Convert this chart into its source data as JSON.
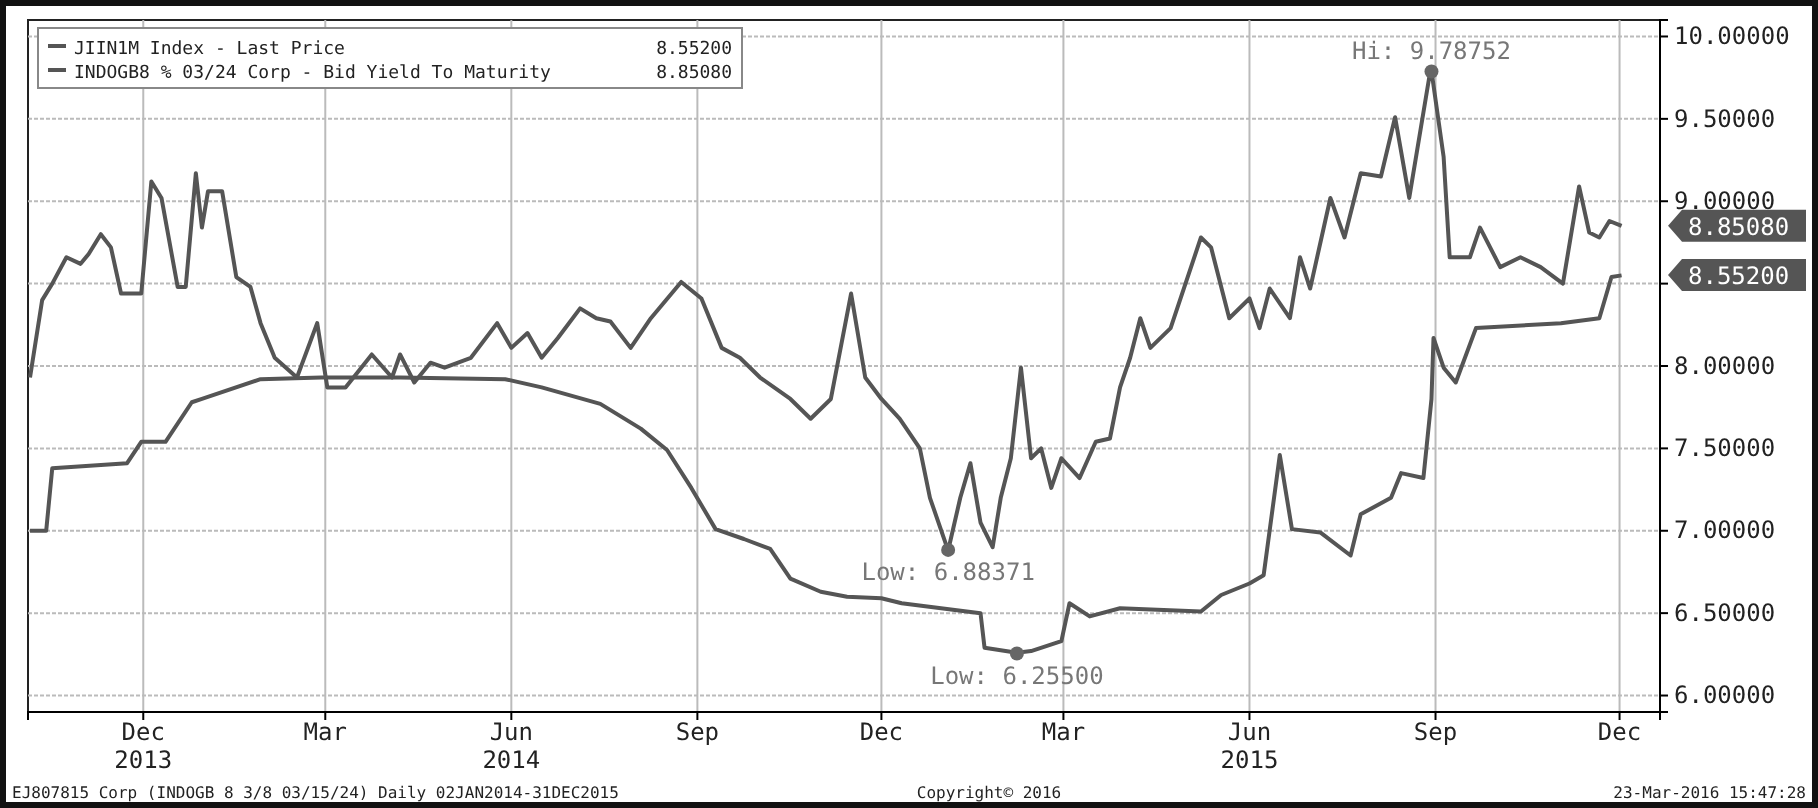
{
  "chart_data": {
    "type": "line",
    "xlim": [
      "2013-10-05",
      "2015-12-21"
    ],
    "ylim": [
      5.9,
      10.1
    ],
    "xticks": [
      {
        "value": "2013-12-01",
        "label": "Dec\n2013"
      },
      {
        "value": "2014-03-01",
        "label": "Mar"
      },
      {
        "value": "2014-06-01",
        "label": "Jun\n2014"
      },
      {
        "value": "2014-09-01",
        "label": "Sep"
      },
      {
        "value": "2014-12-01",
        "label": "Dec"
      },
      {
        "value": "2015-03-01",
        "label": "Mar"
      },
      {
        "value": "2015-06-01",
        "label": "Jun\n2015"
      },
      {
        "value": "2015-09-01",
        "label": "Sep"
      },
      {
        "value": "2015-12-01",
        "label": "Dec"
      }
    ],
    "yticks": [
      {
        "value": 6,
        "label": "6.00000"
      },
      {
        "value": 6.5,
        "label": "6.50000"
      },
      {
        "value": 7,
        "label": "7.00000"
      },
      {
        "value": 7.5,
        "label": "7.50000"
      },
      {
        "value": 8,
        "label": "8.00000"
      },
      {
        "value": 8.5,
        "label": null
      },
      {
        "value": 9,
        "label": "9.00000"
      },
      {
        "value": 9.5,
        "label": "9.50000"
      },
      {
        "value": 10,
        "label": "10.00000"
      }
    ],
    "grid": true,
    "legend": "top left",
    "line_style": "solid",
    "series": [
      {
        "name": "JIIN1M Index - Last Price",
        "color": "#555555",
        "x": [
          "2013-10-06",
          "2013-10-14",
          "2013-10-17",
          "2013-11-23",
          "2013-11-30",
          "2013-12-12",
          "2013-12-25",
          "2013-12-30",
          "2014-01-28",
          "2014-02-27",
          "2014-04-07",
          "2014-05-29",
          "2014-06-16",
          "2014-07-15",
          "2014-08-04",
          "2014-08-17",
          "2014-08-29",
          "2014-09-10",
          "2014-09-24",
          "2014-10-07",
          "2014-10-17",
          "2014-11-01",
          "2014-11-14",
          "2014-12-01",
          "2014-12-11",
          "2015-01-19",
          "2015-01-21",
          "2015-02-06",
          "2015-02-13",
          "2015-02-28",
          "2015-03-04",
          "2015-03-14",
          "2015-03-29",
          "2015-05-08",
          "2015-05-18",
          "2015-06-01",
          "2015-06-08",
          "2015-06-16",
          "2015-06-22",
          "2015-07-06",
          "2015-07-21",
          "2015-07-26",
          "2015-08-10",
          "2015-08-15",
          "2015-08-26",
          "2015-08-30",
          "2015-08-31",
          "2015-09-05",
          "2015-09-11",
          "2015-09-21",
          "2015-11-02",
          "2015-11-21",
          "2015-11-27",
          "2015-12-02"
        ],
        "values": [
          7.0,
          7.0,
          7.38,
          7.41,
          7.54,
          7.54,
          7.78,
          7.8,
          7.92,
          7.93,
          7.93,
          7.92,
          7.87,
          7.77,
          7.62,
          7.49,
          7.26,
          7.01,
          6.95,
          6.89,
          6.71,
          6.63,
          6.6,
          6.59,
          6.56,
          6.5,
          6.29,
          6.26,
          6.27,
          6.33,
          6.56,
          6.48,
          6.53,
          6.51,
          6.61,
          6.68,
          6.73,
          7.46,
          7.01,
          6.99,
          6.85,
          7.1,
          7.2,
          7.35,
          7.32,
          7.8,
          8.17,
          7.99,
          7.9,
          8.23,
          8.26,
          8.29,
          8.54,
          8.55
        ]
      },
      {
        "name": "INDOGB8 % 03/24 Corp - Bid Yield To Maturity",
        "color": "#555555",
        "x": [
          "2013-10-06",
          "2013-10-12",
          "2013-10-17",
          "2013-10-24",
          "2013-10-31",
          "2013-11-04",
          "2013-11-10",
          "2013-11-15",
          "2013-11-20",
          "2013-11-30",
          "2013-12-05",
          "2013-12-10",
          "2013-12-18",
          "2013-12-22",
          "2013-12-27",
          "2013-12-30",
          "2014-01-02",
          "2014-01-09",
          "2014-01-16",
          "2014-01-23",
          "2014-01-28",
          "2014-02-04",
          "2014-02-15",
          "2014-02-25",
          "2014-03-02",
          "2014-03-11",
          "2014-03-24",
          "2014-04-03",
          "2014-04-07",
          "2014-04-14",
          "2014-04-22",
          "2014-04-29",
          "2014-05-12",
          "2014-05-25",
          "2014-06-01",
          "2014-06-09",
          "2014-06-16",
          "2014-06-24",
          "2014-07-05",
          "2014-07-13",
          "2014-07-20",
          "2014-07-30",
          "2014-08-09",
          "2014-08-24",
          "2014-09-03",
          "2014-09-13",
          "2014-09-22",
          "2014-10-02",
          "2014-10-17",
          "2014-10-27",
          "2014-11-06",
          "2014-11-16",
          "2014-11-23",
          "2014-12-01",
          "2014-12-10",
          "2014-12-20",
          "2014-12-25",
          "2015-01-03",
          "2015-01-09",
          "2015-01-14",
          "2015-01-19",
          "2015-01-25",
          "2015-01-29",
          "2015-02-03",
          "2015-02-08",
          "2015-02-13",
          "2015-02-18",
          "2015-02-23",
          "2015-02-28",
          "2015-03-09",
          "2015-03-17",
          "2015-03-24",
          "2015-03-29",
          "2015-04-03",
          "2015-04-08",
          "2015-04-13",
          "2015-04-23",
          "2015-05-08",
          "2015-05-13",
          "2015-05-22",
          "2015-06-01",
          "2015-06-06",
          "2015-06-11",
          "2015-06-21",
          "2015-06-26",
          "2015-07-01",
          "2015-07-11",
          "2015-07-18",
          "2015-07-26",
          "2015-08-05",
          "2015-08-12",
          "2015-08-19",
          "2015-08-29",
          "2015-08-30",
          "2015-09-05",
          "2015-09-08",
          "2015-09-18",
          "2015-09-23",
          "2015-10-03",
          "2015-10-13",
          "2015-10-23",
          "2015-11-03",
          "2015-11-11",
          "2015-11-16",
          "2015-11-21",
          "2015-11-26",
          "2015-12-02"
        ],
        "values": [
          7.93,
          8.4,
          8.5,
          8.66,
          8.62,
          8.68,
          8.8,
          8.72,
          8.44,
          8.44,
          9.12,
          9.02,
          8.48,
          8.48,
          9.17,
          8.84,
          9.06,
          9.06,
          8.54,
          8.48,
          8.26,
          8.05,
          7.93,
          8.26,
          7.87,
          7.87,
          8.07,
          7.93,
          8.07,
          7.9,
          8.02,
          7.99,
          8.05,
          8.26,
          8.11,
          8.2,
          8.05,
          8.17,
          8.35,
          8.29,
          8.27,
          8.11,
          8.29,
          8.51,
          8.41,
          8.11,
          8.05,
          7.93,
          7.8,
          7.68,
          7.8,
          8.44,
          7.93,
          7.8,
          7.68,
          7.5,
          7.2,
          6.88,
          7.2,
          7.41,
          7.05,
          6.9,
          7.2,
          7.44,
          7.99,
          7.44,
          7.5,
          7.26,
          7.44,
          7.32,
          7.54,
          7.56,
          7.87,
          8.05,
          8.29,
          8.11,
          8.23,
          8.78,
          8.72,
          8.29,
          8.41,
          8.23,
          8.47,
          8.29,
          8.66,
          8.47,
          9.02,
          8.78,
          9.17,
          9.15,
          9.51,
          9.02,
          9.76,
          9.79,
          9.27,
          8.66,
          8.66,
          8.84,
          8.6,
          8.66,
          8.6,
          8.5,
          9.09,
          8.81,
          8.78,
          8.88,
          8.85
        ]
      }
    ],
    "annotations": [
      {
        "text": "Hi: 9.78752",
        "x": "2015-08-30",
        "y": 9.78752
      },
      {
        "text": "Low: 6.88371",
        "x": "2015-01-03",
        "y": 6.88371
      },
      {
        "text": "Low: 6.25500",
        "x": "2015-02-06",
        "y": 6.255
      },
      {
        "text": "8.55200",
        "x": "2015-12-02",
        "y": 8.552
      },
      {
        "text": "8.85080",
        "x": "2015-12-02",
        "y": 8.8508
      },
      "EJ807815 Corp (INDOGB 8 3/8 03/15/24)  Daily 02JAN2014-31DEC2015",
      "Copyright© 2016",
      "23-Mar-2016 15:47:28"
    ]
  }
}
